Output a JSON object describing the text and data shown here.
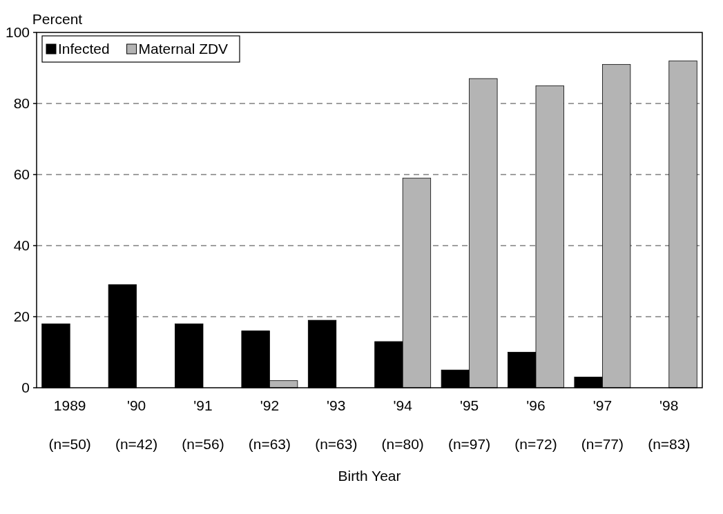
{
  "chart_data": {
    "type": "bar",
    "ylabel": "Percent",
    "xlabel": "Birth Year",
    "categories": [
      "1989\n(n=50)",
      "'90\n(n=42)",
      "'91\n(n=56)",
      "'92\n(n=63)",
      "'93\n(n=63)",
      "'94\n(n=80)",
      "'95\n(n=97)",
      "'96\n(n=72)",
      "'97\n(n=77)",
      "'98\n(n=83)"
    ],
    "series": [
      {
        "name": "Infected",
        "color": "#000000",
        "values": [
          18,
          29,
          18,
          16,
          19,
          13,
          5,
          10,
          3,
          0
        ]
      },
      {
        "name": "Maternal ZDV",
        "color": "#b4b4b4",
        "values": [
          0,
          0,
          0,
          2,
          0,
          59,
          87,
          85,
          91,
          92
        ]
      }
    ],
    "ylim": [
      0,
      100
    ],
    "yticks": [
      0,
      20,
      40,
      60,
      80,
      100
    ],
    "grid": "y",
    "legend": "top left"
  }
}
